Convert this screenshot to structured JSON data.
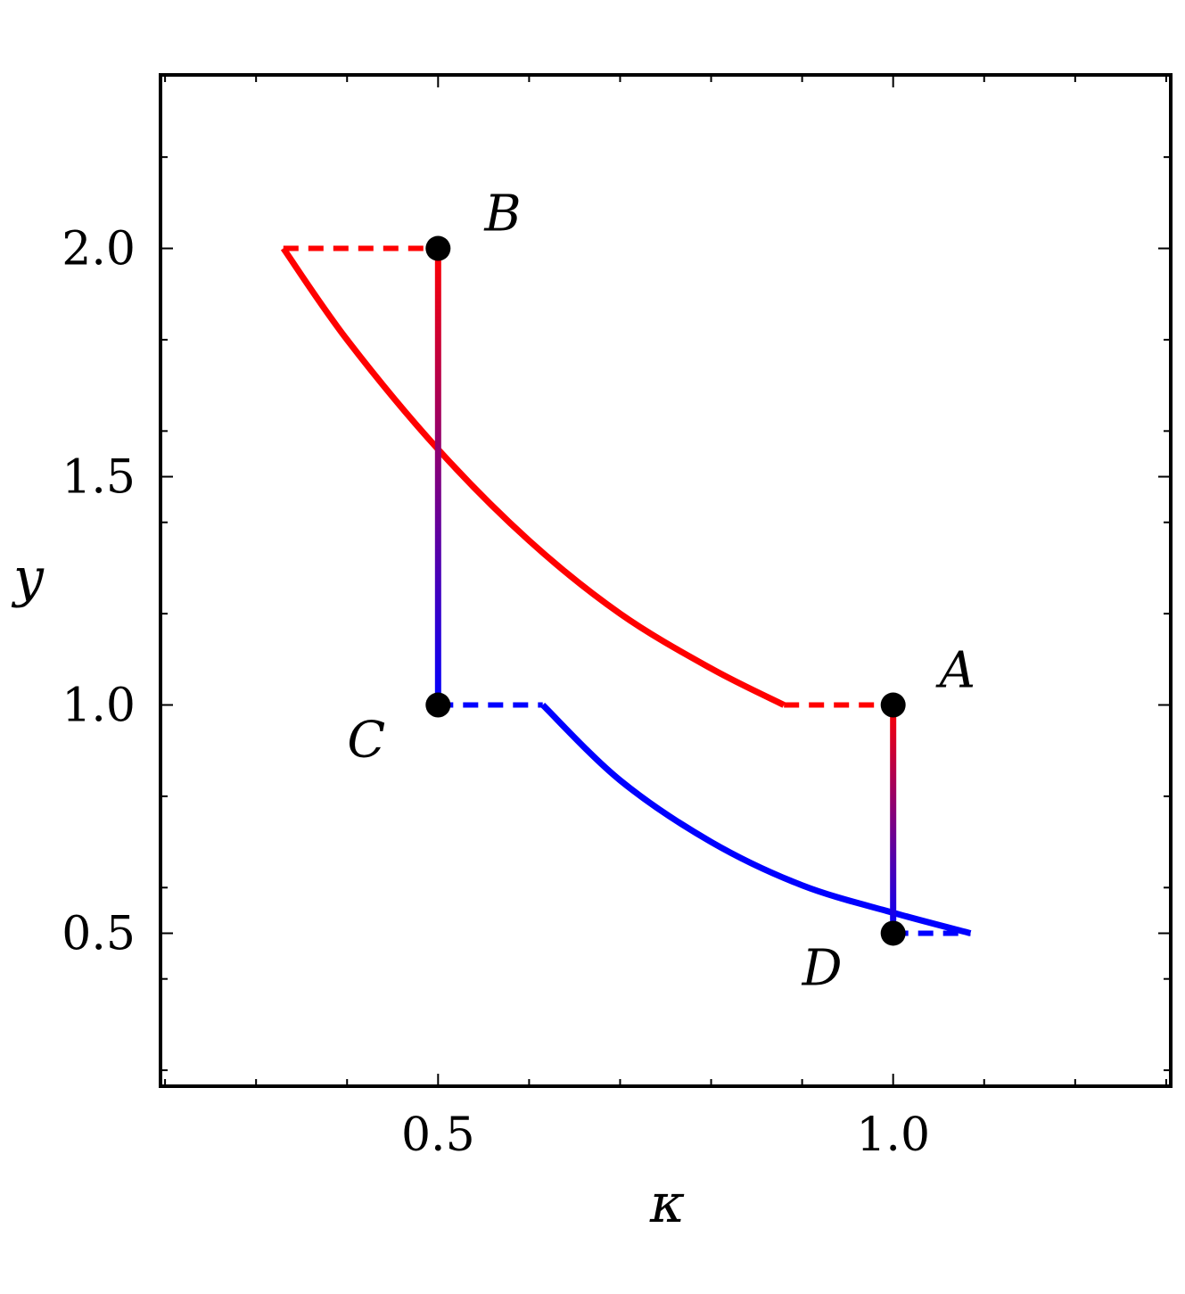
{
  "chart_data": {
    "type": "line",
    "title": "",
    "xlabel": "κ",
    "ylabel": "y",
    "xlim": [
      0.195,
      1.305
    ],
    "ylim": [
      0.165,
      2.38
    ],
    "x_ticks": [
      0.5,
      1.0
    ],
    "x_tick_labels": [
      "0.5",
      "1.0"
    ],
    "y_ticks": [
      0.5,
      1.0,
      1.5,
      2.0
    ],
    "y_tick_labels": [
      "0.5",
      "1.0",
      "1.5",
      "2.0"
    ],
    "grid": false,
    "colors": {
      "hot": "#ff0000",
      "cold": "#0000ff",
      "point": "#000000",
      "frame": "#000000"
    },
    "series": [
      {
        "role": "upper-curve",
        "color": "#ff0000",
        "style": "solid",
        "x": [
          0.33,
          0.4,
          0.5,
          0.6,
          0.7,
          0.8,
          0.88
        ],
        "y": [
          2.0,
          1.8,
          1.56,
          1.36,
          1.2,
          1.08,
          1.0
        ]
      },
      {
        "role": "lower-curve",
        "color": "#0000ff",
        "style": "solid",
        "x": [
          0.615,
          0.7,
          0.8,
          0.9,
          1.0,
          1.085
        ],
        "y": [
          1.0,
          0.835,
          0.7,
          0.605,
          0.545,
          0.5
        ]
      },
      {
        "role": "dashed-top",
        "color": "#ff0000",
        "style": "dashed",
        "x": [
          0.33,
          0.5
        ],
        "y": [
          2.0,
          2.0
        ]
      },
      {
        "role": "dashed-right",
        "color": "#ff0000",
        "style": "dashed",
        "x": [
          0.88,
          1.0
        ],
        "y": [
          1.0,
          1.0
        ]
      },
      {
        "role": "dashed-left",
        "color": "#0000ff",
        "style": "dashed",
        "x": [
          0.5,
          0.615
        ],
        "y": [
          1.0,
          1.0
        ]
      },
      {
        "role": "dashed-bottom",
        "color": "#0000ff",
        "style": "dashed",
        "x": [
          1.0,
          1.085
        ],
        "y": [
          0.5,
          0.5
        ]
      },
      {
        "role": "vertical-left",
        "style": "gradient",
        "from_color": "#ff0000",
        "to_color": "#0000ff",
        "x": [
          0.5,
          0.5
        ],
        "y": [
          2.0,
          1.0
        ]
      },
      {
        "role": "vertical-right",
        "style": "gradient",
        "from_color": "#ff0000",
        "to_color": "#0000ff",
        "x": [
          1.0,
          1.0
        ],
        "y": [
          1.0,
          0.5
        ]
      }
    ],
    "points": [
      {
        "label": "A",
        "x": 1.0,
        "y": 1.0,
        "label_side": "upper-right"
      },
      {
        "label": "B",
        "x": 0.5,
        "y": 2.0,
        "label_side": "upper-right"
      },
      {
        "label": "C",
        "x": 0.5,
        "y": 1.0,
        "label_side": "lower-left"
      },
      {
        "label": "D",
        "x": 1.0,
        "y": 0.5,
        "label_side": "lower-left"
      }
    ]
  }
}
